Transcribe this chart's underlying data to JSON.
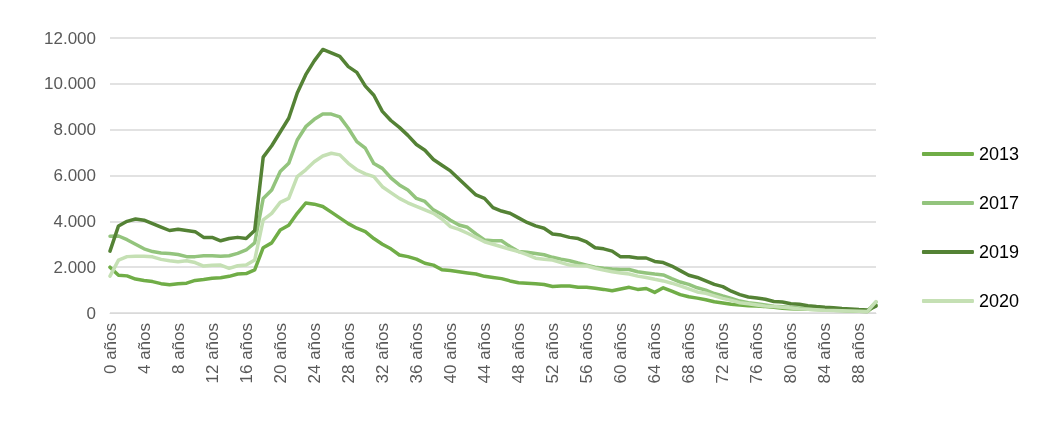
{
  "chart_data": {
    "type": "line",
    "categories": [
      "0 años",
      null,
      null,
      null,
      "4 años",
      null,
      null,
      null,
      "8 años",
      null,
      null,
      null,
      "12 años",
      null,
      null,
      null,
      "16 años",
      null,
      null,
      null,
      "20 años",
      null,
      null,
      null,
      "24 años",
      null,
      null,
      null,
      "28 años",
      null,
      null,
      null,
      "32 años",
      null,
      null,
      null,
      "36 años",
      null,
      null,
      null,
      "40 años",
      null,
      null,
      null,
      "44 años",
      null,
      null,
      null,
      "48 años",
      null,
      null,
      null,
      "52 años",
      null,
      null,
      null,
      "56 años",
      null,
      null,
      null,
      "60 años",
      null,
      null,
      null,
      "64 años",
      null,
      null,
      null,
      "68 años",
      null,
      null,
      null,
      "72 años",
      null,
      null,
      null,
      "76 años",
      null,
      null,
      null,
      "80 años",
      null,
      null,
      null,
      "84 años",
      null,
      null,
      null,
      "88 años",
      null,
      null
    ],
    "series": [
      {
        "name": "2013",
        "color": "#70ad47",
        "values": [
          2000,
          1650,
          1620,
          1480,
          1420,
          1370,
          1280,
          1230,
          1280,
          1300,
          1420,
          1460,
          1520,
          1540,
          1600,
          1700,
          1720,
          1880,
          2850,
          3060,
          3620,
          3830,
          4350,
          4800,
          4750,
          4650,
          4400,
          4150,
          3900,
          3700,
          3550,
          3250,
          3000,
          2800,
          2530,
          2460,
          2350,
          2170,
          2090,
          1890,
          1850,
          1800,
          1750,
          1700,
          1600,
          1550,
          1500,
          1400,
          1320,
          1300,
          1280,
          1240,
          1160,
          1180,
          1180,
          1120,
          1120,
          1080,
          1030,
          970,
          1050,
          1120,
          1030,
          1070,
          900,
          1100,
          950,
          800,
          710,
          650,
          580,
          490,
          440,
          380,
          350,
          320,
          300,
          280,
          250,
          210,
          180,
          170,
          160,
          150,
          140,
          120,
          110,
          100,
          80,
          70,
          350
        ]
      },
      {
        "name": "2017",
        "color": "#93c47d",
        "values": [
          3350,
          3360,
          3200,
          3000,
          2800,
          2680,
          2620,
          2600,
          2550,
          2460,
          2460,
          2500,
          2500,
          2480,
          2500,
          2600,
          2750,
          3060,
          5000,
          5370,
          6170,
          6530,
          7550,
          8130,
          8450,
          8680,
          8680,
          8560,
          8060,
          7480,
          7190,
          6520,
          6310,
          5900,
          5590,
          5370,
          5000,
          4870,
          4500,
          4300,
          4050,
          3840,
          3740,
          3450,
          3190,
          3150,
          3150,
          2900,
          2680,
          2650,
          2600,
          2540,
          2430,
          2350,
          2280,
          2180,
          2090,
          2000,
          1950,
          1920,
          1900,
          1900,
          1800,
          1750,
          1700,
          1660,
          1500,
          1350,
          1250,
          1100,
          1000,
          850,
          740,
          640,
          520,
          450,
          400,
          350,
          300,
          270,
          240,
          220,
          200,
          180,
          160,
          140,
          120,
          110,
          100,
          90,
          480
        ]
      },
      {
        "name": "2019",
        "color": "#548235",
        "values": [
          2700,
          3800,
          4000,
          4100,
          4050,
          3900,
          3750,
          3600,
          3650,
          3600,
          3550,
          3300,
          3300,
          3150,
          3250,
          3300,
          3250,
          3600,
          6800,
          7300,
          7900,
          8500,
          9600,
          10400,
          11000,
          11500,
          11350,
          11200,
          10750,
          10500,
          9900,
          9500,
          8800,
          8400,
          8100,
          7750,
          7350,
          7100,
          6700,
          6450,
          6200,
          5850,
          5500,
          5150,
          5000,
          4600,
          4450,
          4350,
          4150,
          3950,
          3800,
          3700,
          3450,
          3400,
          3300,
          3250,
          3100,
          2850,
          2800,
          2700,
          2450,
          2450,
          2400,
          2400,
          2250,
          2200,
          2050,
          1850,
          1650,
          1550,
          1400,
          1250,
          1150,
          950,
          800,
          700,
          650,
          600,
          500,
          480,
          400,
          380,
          320,
          280,
          250,
          230,
          200,
          180,
          150,
          130,
          300
        ]
      },
      {
        "name": "2020",
        "color": "#c5e0b4",
        "values": [
          1610,
          2310,
          2460,
          2480,
          2480,
          2450,
          2340,
          2280,
          2240,
          2280,
          2200,
          2050,
          2080,
          2090,
          1950,
          2060,
          2090,
          2310,
          4060,
          4350,
          4830,
          5000,
          5950,
          6250,
          6600,
          6850,
          6970,
          6900,
          6530,
          6250,
          6070,
          5950,
          5510,
          5250,
          5000,
          4810,
          4650,
          4500,
          4350,
          4100,
          3770,
          3650,
          3480,
          3300,
          3110,
          3000,
          2890,
          2780,
          2680,
          2550,
          2390,
          2350,
          2310,
          2200,
          2090,
          2060,
          2050,
          1950,
          1870,
          1800,
          1750,
          1700,
          1610,
          1550,
          1470,
          1400,
          1300,
          1180,
          1050,
          920,
          860,
          750,
          640,
          550,
          450,
          400,
          350,
          300,
          280,
          250,
          220,
          180,
          160,
          140,
          120,
          110,
          100,
          90,
          80,
          70,
          500
        ]
      }
    ],
    "ylim": [
      0,
      12000
    ],
    "yticks": [
      0,
      {
        "value": 2000,
        "label": "2.000"
      },
      {
        "value": 4000,
        "label": "4.000"
      },
      {
        "value": 6000,
        "label": "6.000"
      },
      {
        "value": 8000,
        "label": "8.000"
      },
      {
        "value": 10000,
        "label": "10.000"
      },
      {
        "value": 12000,
        "label": "12.000"
      }
    ],
    "grid": "y",
    "legend": "right",
    "marker": "none",
    "line_style": "solid"
  }
}
